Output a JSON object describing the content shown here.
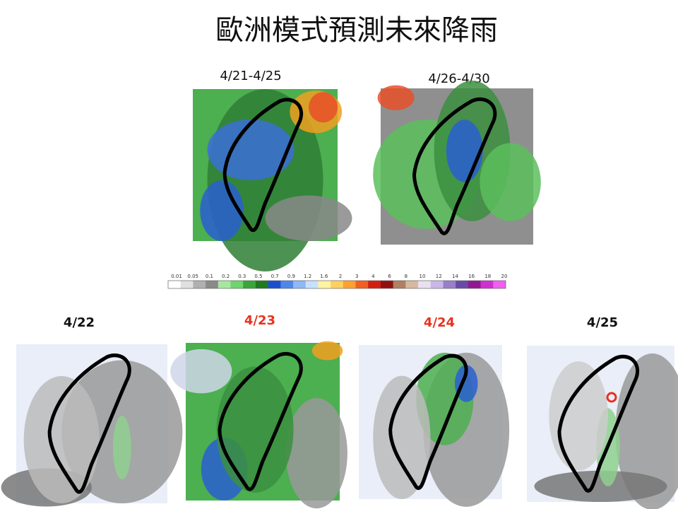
{
  "header": {
    "title": "歐洲模式預測未來降雨"
  },
  "summary_maps": [
    {
      "label": "4/21-4/25"
    },
    {
      "label": "4/26-4/30"
    }
  ],
  "colorbar": {
    "labels": [
      "0.01",
      "0.05",
      "0.1",
      "0.2",
      "0.3",
      "0.5",
      "0.7",
      "0.9",
      "1.2",
      "1.6",
      "2",
      "3",
      "4",
      "6",
      "8",
      "10",
      "12",
      "14",
      "16",
      "18",
      "20"
    ]
  },
  "daily_maps": [
    {
      "label": "4/22"
    },
    {
      "label": "4/23"
    },
    {
      "label": "4/24"
    },
    {
      "label": "4/25"
    }
  ]
}
